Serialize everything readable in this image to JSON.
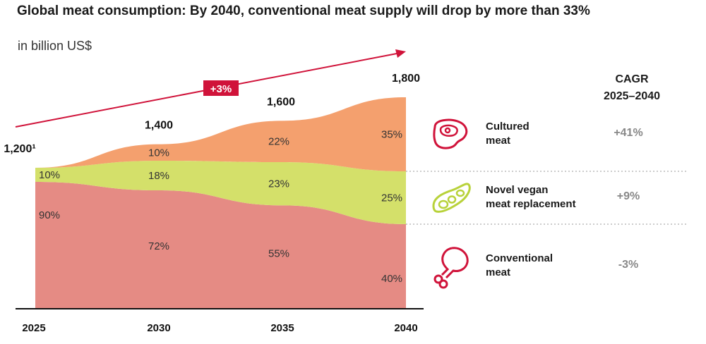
{
  "title": "Global meat consumption: By 2040, conventional meat supply will drop by more than 33%",
  "subtitle": "in billion US$",
  "growth_badge": "+3%",
  "cagr_header": [
    "CAGR",
    "2025–2040"
  ],
  "colors": {
    "cultured": "#f4a06e",
    "vegan": "#d4e06a",
    "conventional": "#e58b84",
    "accent": "#d0133a",
    "icon_stroke": "#d0133a",
    "icon_green": "#b8d23a"
  },
  "chart_data": {
    "type": "area",
    "x": [
      "2025",
      "2030",
      "2035",
      "2040"
    ],
    "totals": [
      1200,
      1400,
      1600,
      1800
    ],
    "total_labels": [
      "1,200¹",
      "1,400",
      "1,600",
      "1,800"
    ],
    "series": [
      {
        "name": "Conventional meat",
        "values": [
          90,
          72,
          55,
          40
        ],
        "labels": [
          "90%",
          "72%",
          "55%",
          "40%"
        ],
        "cagr": "-3%",
        "icon": "drumstick-icon"
      },
      {
        "name": "Novel vegan meat replacement",
        "values": [
          10,
          18,
          23,
          25
        ],
        "labels": [
          "10%",
          "18%",
          "23%",
          "25%"
        ],
        "cagr": "+9%",
        "icon": "beans-icon"
      },
      {
        "name": "Cultured meat",
        "values": [
          0,
          10,
          22,
          35
        ],
        "labels": [
          "",
          "10%",
          "22%",
          "35%"
        ],
        "cagr": "+41%",
        "icon": "steak-icon"
      }
    ],
    "ylim": [
      0,
      1800
    ],
    "stacking": "percent-of-total"
  },
  "legend": [
    {
      "label_lines": [
        "Cultured",
        "meat"
      ],
      "cagr": "+41%"
    },
    {
      "label_lines": [
        "Novel vegan",
        "meat replacement"
      ],
      "cagr": "+9%"
    },
    {
      "label_lines": [
        "Conventional",
        "meat"
      ],
      "cagr": "-3%"
    }
  ]
}
